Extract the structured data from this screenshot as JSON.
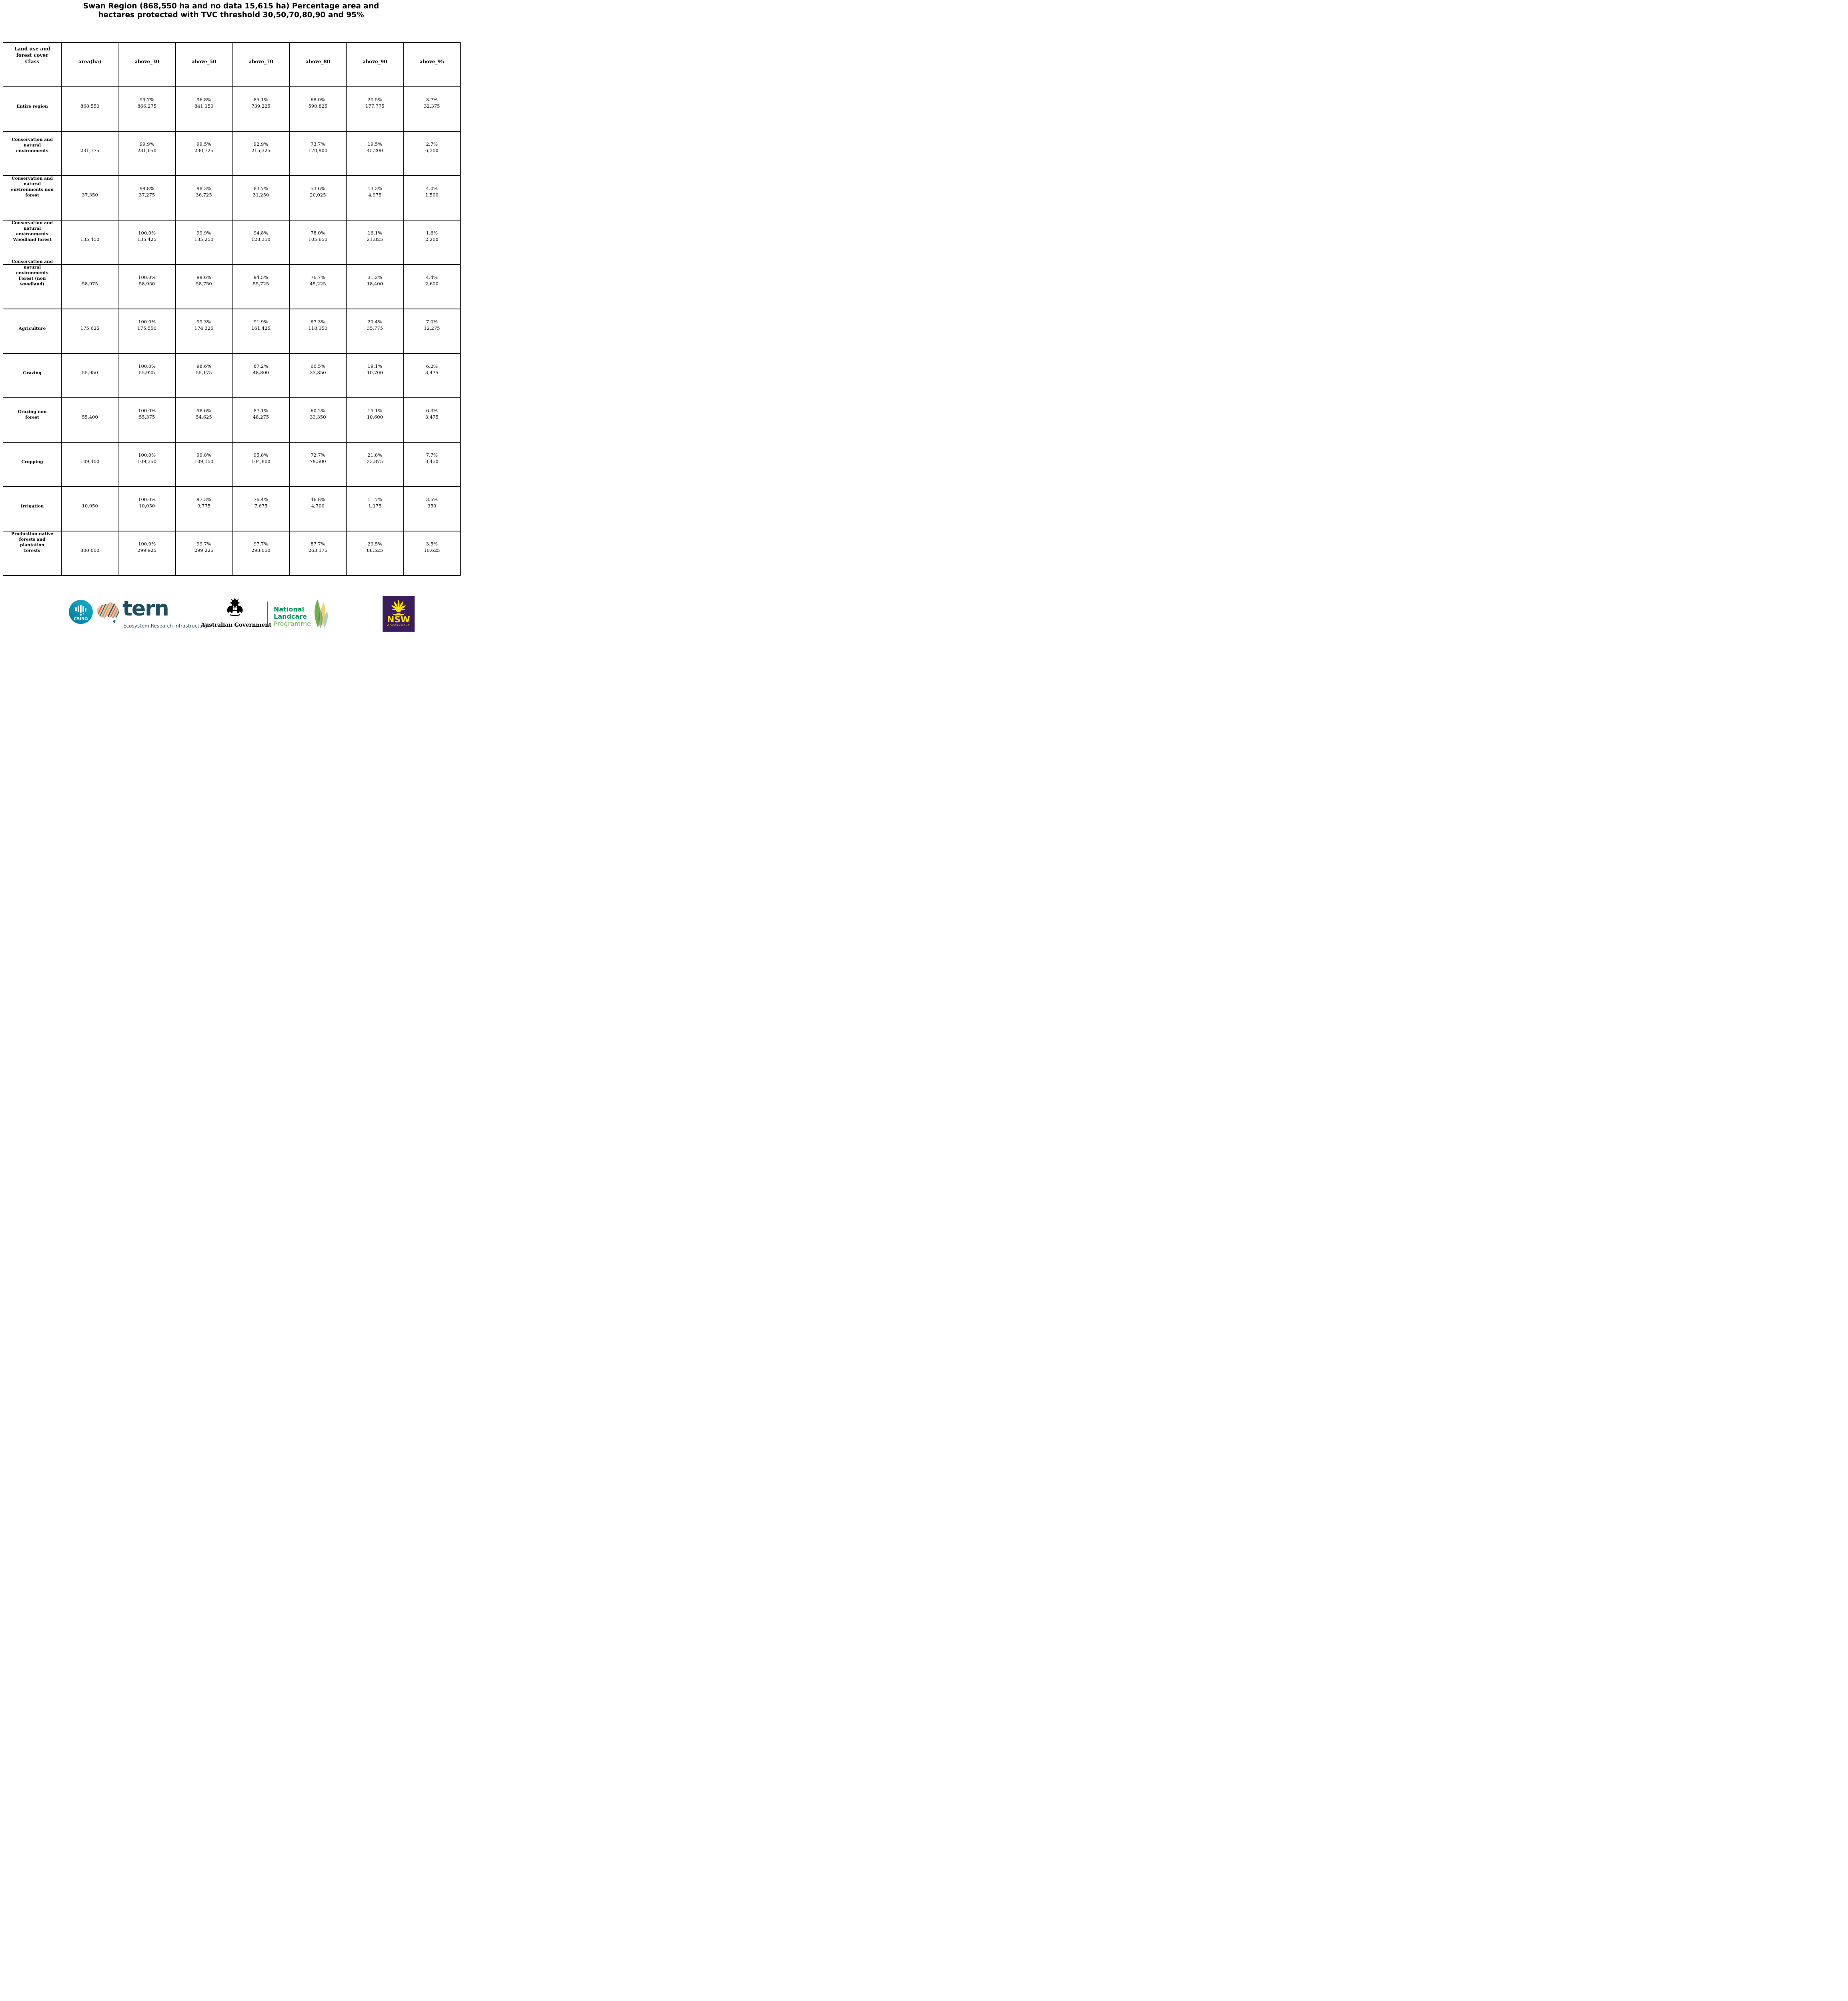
{
  "title": {
    "text": "Swan Region (868,550 ha and no data 15,615 ha) Percentage area and\nhectares protected with TVC threshold 30,50,70,80,90 and 95%"
  },
  "table": {
    "header": {
      "class_col": "Land use and\nforest cover\nClass",
      "cols": [
        "area(ha)",
        "above_30",
        "above_50",
        "above_70",
        "above_80",
        "above_90",
        "above_95"
      ]
    },
    "rows": [
      {
        "label": "Entire region",
        "area": "868,550",
        "cells": [
          [
            "99.7%",
            "866,275"
          ],
          [
            "96.8%",
            "841,150"
          ],
          [
            "85.1%",
            "739,225"
          ],
          [
            "68.0%",
            "590,825"
          ],
          [
            "20.5%",
            "177,775"
          ],
          [
            "3.7%",
            "32,375"
          ]
        ]
      },
      {
        "label": "Conservation and\nnatural\nenvironments",
        "area": "231,775",
        "cells": [
          [
            "99.9%",
            "231,650"
          ],
          [
            "99.5%",
            "230,725"
          ],
          [
            "92.9%",
            "215,325"
          ],
          [
            "73.7%",
            "170,900"
          ],
          [
            "19.5%",
            "45,200"
          ],
          [
            "2.7%",
            "6,300"
          ]
        ]
      },
      {
        "label": "Conservation and\nnatural\nenvironments non\nforest",
        "area": "37,350",
        "cells": [
          [
            "99.8%",
            "37,275"
          ],
          [
            "98.3%",
            "36,725"
          ],
          [
            "83.7%",
            "31,250"
          ],
          [
            "53.6%",
            "20,025"
          ],
          [
            "13.3%",
            "4,975"
          ],
          [
            "4.0%",
            "1,500"
          ]
        ]
      },
      {
        "label": "Conservation and\nnatural\nenvironments\nWoodland forest",
        "area": "135,450",
        "cells": [
          [
            "100.0%",
            "135,425"
          ],
          [
            "99.9%",
            "135,250"
          ],
          [
            "94.8%",
            "128,350"
          ],
          [
            "78.0%",
            "105,650"
          ],
          [
            "16.1%",
            "21,825"
          ],
          [
            "1.6%",
            "2,200"
          ]
        ]
      },
      {
        "label": "Conservation and\nnatural\nenvironments\nForest (non\nwoodland)",
        "area": "58,975",
        "cells": [
          [
            "100.0%",
            "58,950"
          ],
          [
            "99.6%",
            "58,750"
          ],
          [
            "94.5%",
            "55,725"
          ],
          [
            "76.7%",
            "45,225"
          ],
          [
            "31.2%",
            "18,400"
          ],
          [
            "4.4%",
            "2,600"
          ]
        ]
      },
      {
        "label": "Agriculture",
        "area": "175,625",
        "cells": [
          [
            "100.0%",
            "175,550"
          ],
          [
            "99.3%",
            "174,325"
          ],
          [
            "91.9%",
            "161,425"
          ],
          [
            "67.3%",
            "118,150"
          ],
          [
            "20.4%",
            "35,775"
          ],
          [
            "7.0%",
            "12,275"
          ]
        ]
      },
      {
        "label": "Grazing",
        "area": "55,950",
        "cells": [
          [
            "100.0%",
            "55,925"
          ],
          [
            "98.6%",
            "55,175"
          ],
          [
            "87.2%",
            "48,800"
          ],
          [
            "60.5%",
            "33,850"
          ],
          [
            "19.1%",
            "10,700"
          ],
          [
            "6.2%",
            "3,475"
          ]
        ]
      },
      {
        "label": "Grazing non\nforest",
        "area": "55,400",
        "cells": [
          [
            "100.0%",
            "55,375"
          ],
          [
            "98.6%",
            "54,625"
          ],
          [
            "87.1%",
            "48,275"
          ],
          [
            "60.2%",
            "33,350"
          ],
          [
            "19.1%",
            "10,600"
          ],
          [
            "6.3%",
            "3,475"
          ]
        ]
      },
      {
        "label": "Cropping",
        "area": "109,400",
        "cells": [
          [
            "100.0%",
            "109,350"
          ],
          [
            "99.8%",
            "109,150"
          ],
          [
            "95.8%",
            "104,800"
          ],
          [
            "72.7%",
            "79,500"
          ],
          [
            "21.8%",
            "23,875"
          ],
          [
            "7.7%",
            "8,450"
          ]
        ]
      },
      {
        "label": "Irrigation",
        "area": "10,050",
        "cells": [
          [
            "100.0%",
            "10,050"
          ],
          [
            "97.3%",
            "9,775"
          ],
          [
            "76.4%",
            "7,675"
          ],
          [
            "46.8%",
            "4,700"
          ],
          [
            "11.7%",
            "1,175"
          ],
          [
            "3.5%",
            "350"
          ]
        ]
      },
      {
        "label": "Production native\nforests and\nplantation\nforests",
        "area": "300,000",
        "cells": [
          [
            "100.0%",
            "299,925"
          ],
          [
            "99.7%",
            "299,225"
          ],
          [
            "97.7%",
            "293,050"
          ],
          [
            "87.7%",
            "263,175"
          ],
          [
            "29.5%",
            "88,525"
          ],
          [
            "3.5%",
            "10,625"
          ]
        ]
      }
    ]
  },
  "logos": {
    "csiro": {
      "label": "CSIRO"
    },
    "tern": {
      "word": "tern",
      "tagline": "Ecosystem Research Infrastructure"
    },
    "australian_government": {
      "label": "Australian Government"
    },
    "landcare": {
      "line1": "National",
      "line2": "Landcare",
      "line3": "Programme"
    },
    "nsw": {
      "name": "NSW",
      "sub": "GOVERNMENT"
    }
  },
  "colors": {
    "csiro_teal_light": "#1cb0cf",
    "csiro_teal_dark": "#00789c",
    "tern_teal": "#1d4f5e",
    "landcare_green": "#00945e",
    "landcare_light_green": "#6cbf4b",
    "ausgov_black": "#000000",
    "nsw_purple": "#3b1d5e",
    "nsw_yellow": "#ffe100"
  }
}
